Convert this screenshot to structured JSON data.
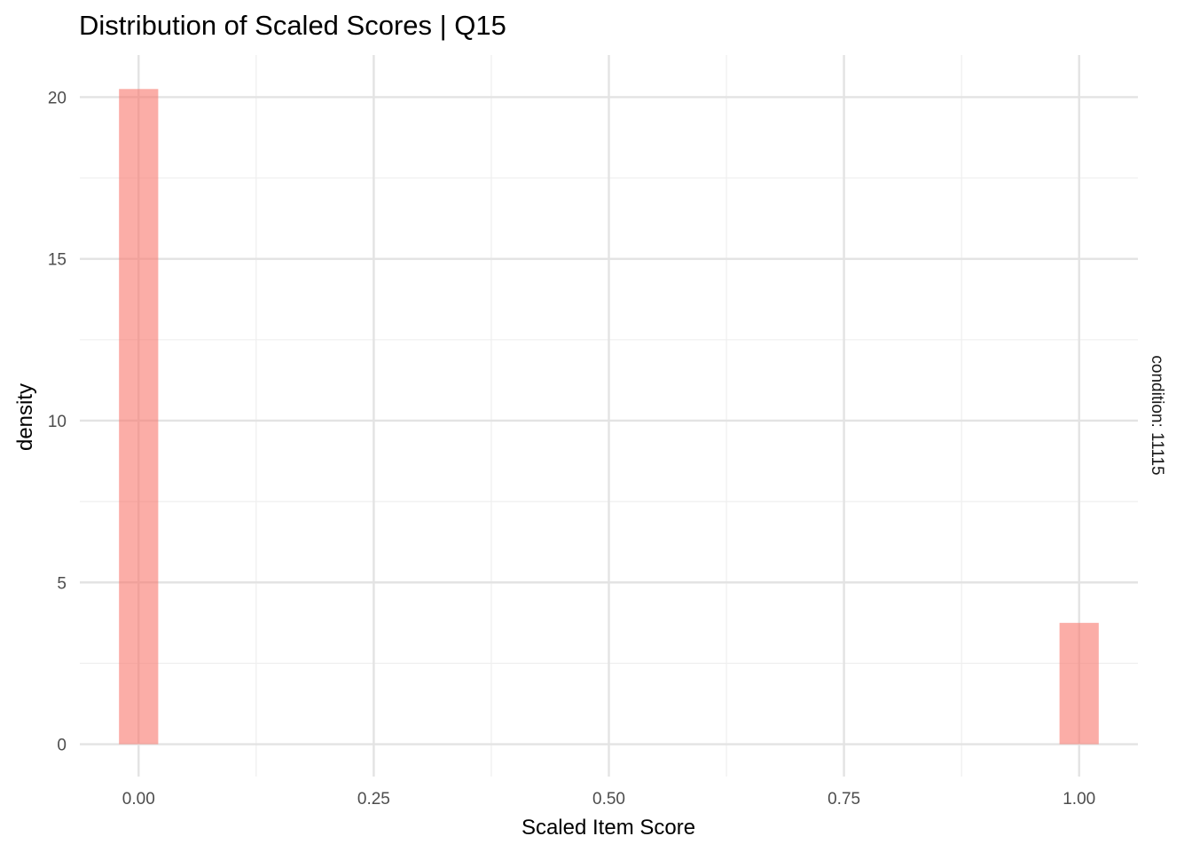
{
  "chart_data": {
    "type": "bar",
    "title": "Distribution of Scaled Scores | Q15",
    "xlabel": "Scaled Item Score",
    "ylabel": "density",
    "facet_label": "condition: 11115",
    "xlim": [
      -0.0625,
      1.0625
    ],
    "ylim": [
      -1.0,
      21.3
    ],
    "x_ticks": [
      {
        "value": 0.0,
        "label": "0.00"
      },
      {
        "value": 0.25,
        "label": "0.25"
      },
      {
        "value": 0.5,
        "label": "0.50"
      },
      {
        "value": 0.75,
        "label": "0.75"
      },
      {
        "value": 1.0,
        "label": "1.00"
      }
    ],
    "y_ticks": [
      {
        "value": 0,
        "label": "0"
      },
      {
        "value": 5,
        "label": "5"
      },
      {
        "value": 10,
        "label": "10"
      },
      {
        "value": 15,
        "label": "15"
      },
      {
        "value": 20,
        "label": "20"
      }
    ],
    "bin_width": 0.0417,
    "bars": [
      {
        "x": 0.0,
        "value": 20.25
      },
      {
        "x": 1.0,
        "value": 3.75
      }
    ],
    "bar_color": "#F8766D",
    "bar_opacity": 0.6,
    "grid": true
  }
}
